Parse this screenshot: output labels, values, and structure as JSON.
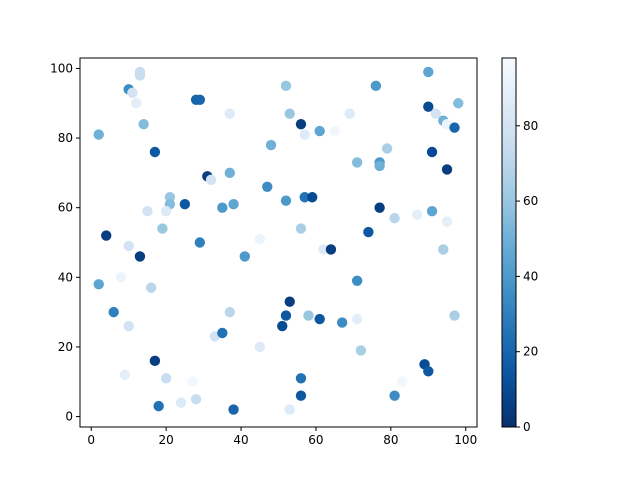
{
  "chart_data": {
    "type": "scatter",
    "title": "",
    "xlabel": "",
    "ylabel": "",
    "xlim": [
      -3,
      103
    ],
    "ylim": [
      -3,
      103
    ],
    "xticks": [
      0,
      20,
      40,
      60,
      80,
      100
    ],
    "yticks": [
      0,
      20,
      40,
      60,
      80,
      100
    ],
    "grid": false,
    "colormap": "Blues_r",
    "colorbar": {
      "range": [
        0,
        98
      ],
      "ticks": [
        0,
        20,
        40,
        60,
        80
      ]
    },
    "points": [
      [
        2,
        81,
        50
      ],
      [
        10,
        94,
        35
      ],
      [
        11,
        93,
        80
      ],
      [
        12,
        90,
        88
      ],
      [
        13,
        98,
        75
      ],
      [
        13,
        99,
        75
      ],
      [
        14,
        84,
        55
      ],
      [
        17,
        76,
        15
      ],
      [
        28,
        91,
        20
      ],
      [
        29,
        91,
        20
      ],
      [
        37,
        87,
        85
      ],
      [
        31,
        69,
        5
      ],
      [
        32,
        68,
        80
      ],
      [
        37,
        70,
        50
      ],
      [
        21,
        63,
        60
      ],
      [
        21,
        61,
        55
      ],
      [
        25,
        61,
        15
      ],
      [
        35,
        60,
        40
      ],
      [
        38,
        61,
        45
      ],
      [
        15,
        59,
        80
      ],
      [
        20,
        59,
        85
      ],
      [
        19,
        54,
        60
      ],
      [
        4,
        52,
        5
      ],
      [
        29,
        50,
        30
      ],
      [
        10,
        49,
        80
      ],
      [
        8,
        40,
        92
      ],
      [
        13,
        46,
        5
      ],
      [
        2,
        38,
        45
      ],
      [
        16,
        37,
        70
      ],
      [
        6,
        30,
        30
      ],
      [
        10,
        26,
        80
      ],
      [
        37,
        30,
        70
      ],
      [
        33,
        23,
        80
      ],
      [
        35,
        24,
        25
      ],
      [
        17,
        16,
        5
      ],
      [
        9,
        12,
        88
      ],
      [
        20,
        11,
        75
      ],
      [
        27,
        10,
        95
      ],
      [
        28,
        5,
        75
      ],
      [
        24,
        4,
        85
      ],
      [
        18,
        3,
        25
      ],
      [
        38,
        2,
        20
      ],
      [
        41,
        46,
        40
      ],
      [
        45,
        51,
        92
      ],
      [
        45,
        20,
        85
      ],
      [
        47,
        66,
        35
      ],
      [
        48,
        78,
        50
      ],
      [
        52,
        95,
        60
      ],
      [
        53,
        87,
        60
      ],
      [
        56,
        84,
        5
      ],
      [
        57,
        81,
        85
      ],
      [
        61,
        82,
        45
      ],
      [
        65,
        82,
        95
      ],
      [
        52,
        62,
        40
      ],
      [
        57,
        63,
        25
      ],
      [
        59,
        63,
        10
      ],
      [
        56,
        54,
        65
      ],
      [
        62,
        48,
        85
      ],
      [
        64,
        48,
        5
      ],
      [
        53,
        33,
        5
      ],
      [
        52,
        29,
        15
      ],
      [
        51,
        26,
        10
      ],
      [
        58,
        29,
        60
      ],
      [
        61,
        28,
        15
      ],
      [
        67,
        27,
        35
      ],
      [
        71,
        28,
        88
      ],
      [
        72,
        19,
        65
      ],
      [
        56,
        11,
        25
      ],
      [
        56,
        6,
        15
      ],
      [
        53,
        2,
        85
      ],
      [
        69,
        87,
        85
      ],
      [
        76,
        95,
        40
      ],
      [
        71,
        73,
        55
      ],
      [
        77,
        73,
        40
      ],
      [
        77,
        72,
        50
      ],
      [
        79,
        77,
        65
      ],
      [
        77,
        60,
        5
      ],
      [
        74,
        53,
        15
      ],
      [
        71,
        39,
        35
      ],
      [
        81,
        57,
        70
      ],
      [
        87,
        58,
        88
      ],
      [
        90,
        99,
        45
      ],
      [
        90,
        89,
        10
      ],
      [
        92,
        87,
        80
      ],
      [
        94,
        85,
        50
      ],
      [
        95,
        84,
        92
      ],
      [
        97,
        83,
        20
      ],
      [
        98,
        90,
        55
      ],
      [
        91,
        76,
        10
      ],
      [
        95,
        71,
        5
      ],
      [
        91,
        59,
        45
      ],
      [
        95,
        56,
        88
      ],
      [
        94,
        48,
        65
      ],
      [
        97,
        29,
        65
      ],
      [
        89,
        15,
        10
      ],
      [
        90,
        13,
        15
      ],
      [
        83,
        10,
        95
      ],
      [
        81,
        6,
        35
      ]
    ]
  }
}
